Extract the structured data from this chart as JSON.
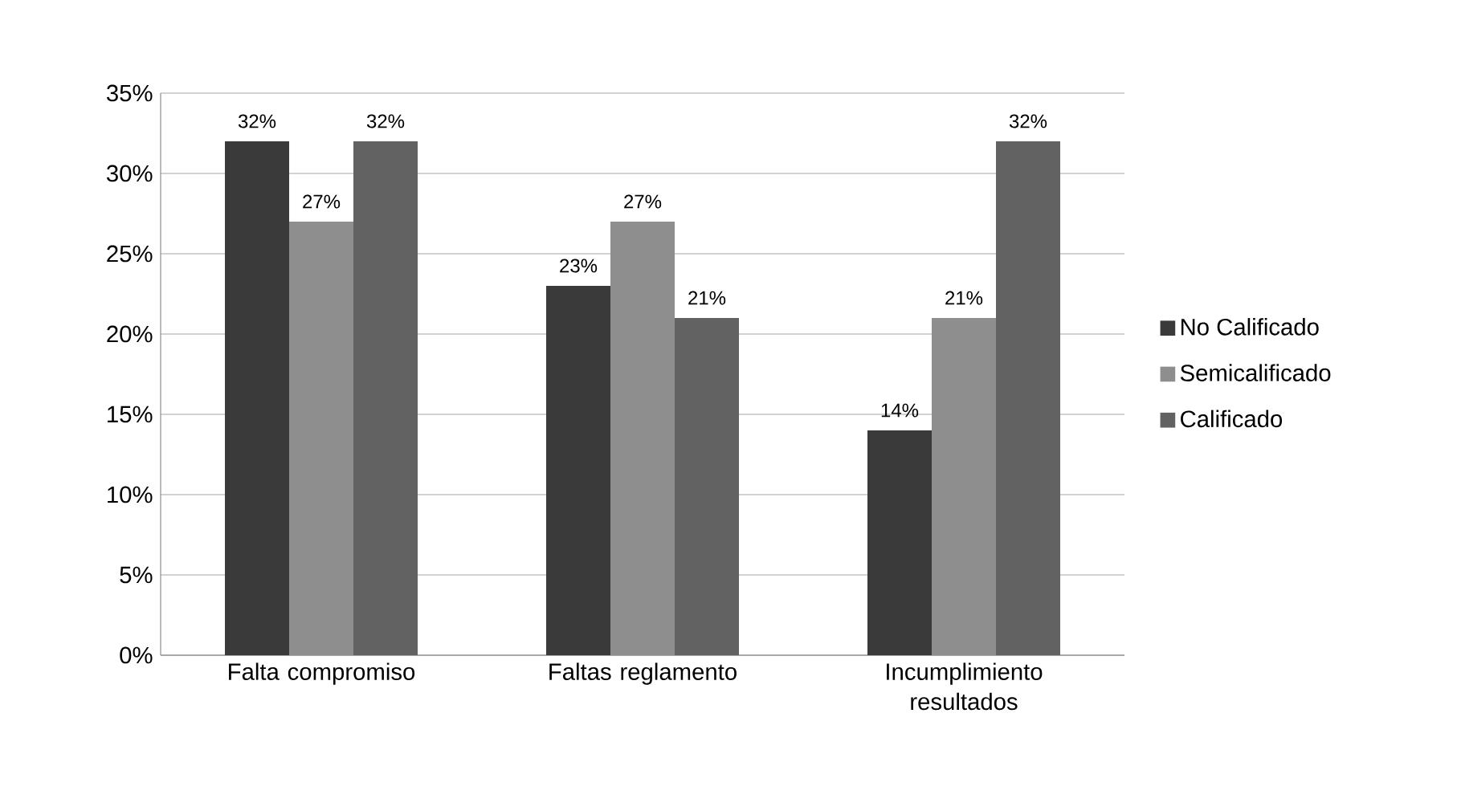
{
  "chart_data": {
    "type": "bar",
    "categories": [
      "Falta compromiso",
      "Faltas reglamento",
      "Incumplimiento resultados"
    ],
    "series": [
      {
        "name": "No Calificado",
        "color": "#3a3a3a",
        "values": [
          32,
          23,
          14
        ],
        "value_labels": [
          "32%",
          "23%",
          "14%"
        ]
      },
      {
        "name": "Semicalificado",
        "color": "#8e8e8e",
        "values": [
          27,
          27,
          21
        ],
        "value_labels": [
          "27%",
          "27%",
          "21%"
        ]
      },
      {
        "name": "Calificado",
        "color": "#626262",
        "values": [
          32,
          21,
          32
        ],
        "value_labels": [
          "32%",
          "21%",
          "32%"
        ]
      }
    ],
    "ylim": [
      0,
      35
    ],
    "yticks": [
      {
        "value": 0,
        "label": "0%"
      },
      {
        "value": 5,
        "label": "5%"
      },
      {
        "value": 10,
        "label": "10%"
      },
      {
        "value": 15,
        "label": "15%"
      },
      {
        "value": 20,
        "label": "20%"
      },
      {
        "value": 25,
        "label": "25%"
      },
      {
        "value": 30,
        "label": "30%"
      },
      {
        "value": 35,
        "label": "35%"
      }
    ],
    "grid": "y",
    "legend": "right"
  }
}
